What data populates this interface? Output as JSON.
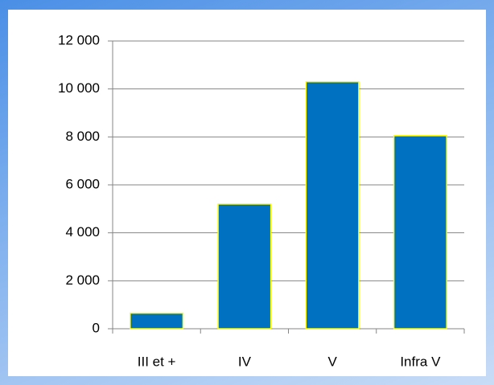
{
  "chart_data": {
    "type": "bar",
    "categories": [
      "III et +",
      "IV",
      "V",
      "Infra V"
    ],
    "values": [
      650,
      5200,
      10300,
      8050
    ],
    "color": "#0070c0",
    "edge_color": "#ffff00",
    "ylim": [
      0,
      12000
    ],
    "yticks": [
      0,
      {
        "value": 2000,
        "label": "2 000"
      },
      {
        "value": 4000,
        "label": "4 000"
      },
      {
        "value": 6000,
        "label": "6 000"
      },
      {
        "value": 8000,
        "label": "8 000"
      },
      {
        "value": 10000,
        "label": "10 000"
      },
      {
        "value": 12000,
        "label": "12 000"
      }
    ],
    "grid": true
  }
}
